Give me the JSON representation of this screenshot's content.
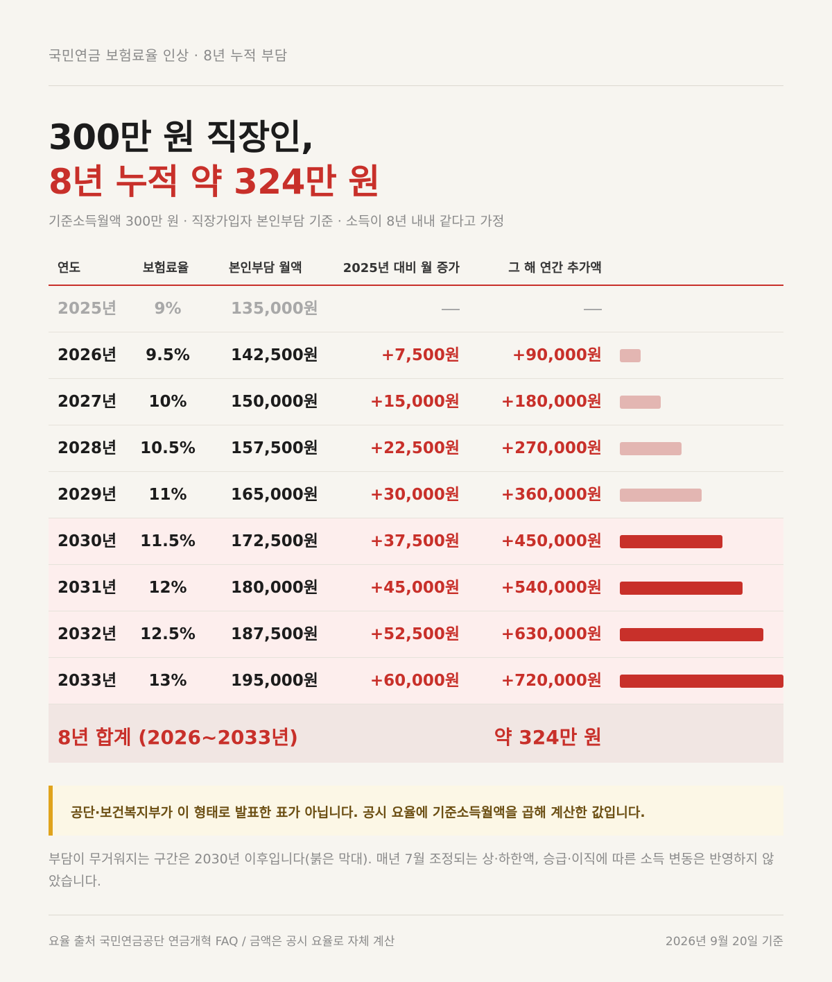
{
  "header": {
    "top_label": "국민연금 보험료율 인상 · 8년 누적 부담",
    "title_line1": "300만 원 직장인,",
    "title_line2": "8년 누적 약 324만 원",
    "subtitle": "기준소득월액 300만 원 · 직장가입자 본인부담 기준 · 소득이 8년 내내 같다고 가정"
  },
  "table": {
    "headers": [
      "연도",
      "보험료율",
      "본인부담 월액",
      "2025년 대비 월 증가",
      "그 해 연간 추가액"
    ],
    "rows": [
      {
        "year": "2025년",
        "rate": "9%",
        "monthly": "135,000원",
        "increase": "—",
        "annual": "—",
        "annual_value": 0,
        "style": "base"
      },
      {
        "year": "2026년",
        "rate": "9.5%",
        "monthly": "142,500원",
        "increase": "+7,500원",
        "annual": "+90,000원",
        "annual_value": 90000,
        "style": "light"
      },
      {
        "year": "2027년",
        "rate": "10%",
        "monthly": "150,000원",
        "increase": "+15,000원",
        "annual": "+180,000원",
        "annual_value": 180000,
        "style": "light"
      },
      {
        "year": "2028년",
        "rate": "10.5%",
        "monthly": "157,500원",
        "increase": "+22,500원",
        "annual": "+270,000원",
        "annual_value": 270000,
        "style": "light"
      },
      {
        "year": "2029년",
        "rate": "11%",
        "monthly": "165,000원",
        "increase": "+30,000원",
        "annual": "+360,000원",
        "annual_value": 360000,
        "style": "light"
      },
      {
        "year": "2030년",
        "rate": "11.5%",
        "monthly": "172,500원",
        "increase": "+37,500원",
        "annual": "+450,000원",
        "annual_value": 450000,
        "style": "heavy"
      },
      {
        "year": "2031년",
        "rate": "12%",
        "monthly": "180,000원",
        "increase": "+45,000원",
        "annual": "+540,000원",
        "annual_value": 540000,
        "style": "heavy"
      },
      {
        "year": "2032년",
        "rate": "12.5%",
        "monthly": "187,500원",
        "increase": "+52,500원",
        "annual": "+630,000원",
        "annual_value": 630000,
        "style": "heavy"
      },
      {
        "year": "2033년",
        "rate": "13%",
        "monthly": "195,000원",
        "increase": "+60,000원",
        "annual": "+720,000원",
        "annual_value": 720000,
        "style": "heavy"
      }
    ],
    "total_label": "8년 합계 (2026~2033년)",
    "total_value": "약 324만 원"
  },
  "colors": {
    "accent": "#c8302a",
    "bar_light": "#e3b6b2",
    "bar_heavy": "#c8302a",
    "note_border": "#e0a31c"
  },
  "note": "공단·보건복지부가 이 형태로 발표한 표가 아닙니다. 공시 요율에 기준소득월액을 곱해 계산한 값입니다.",
  "description": "부담이 무거워지는 구간은 2030년 이후입니다(붉은 막대). 매년 7월 조정되는 상·하한액, 승급·이직에 따른 소득 변동은 반영하지 않았습니다.",
  "footer": {
    "source": "요율 출처 국민연금공단 연금개혁 FAQ / 금액은 공시 요율로 자체 계산",
    "date": "2026년 9월 20일 기준"
  }
}
